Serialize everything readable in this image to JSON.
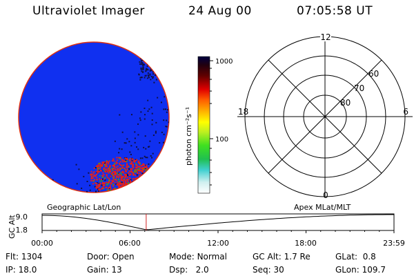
{
  "header": {
    "instrument": "Ultraviolet Imager",
    "date": "24 Aug 00",
    "time": "07:05:58 UT"
  },
  "colorbar": {
    "unit_label": "photon cm⁻²s⁻¹",
    "ticks": [
      "1000",
      "100"
    ]
  },
  "polar_plot": {
    "mlt_labels": [
      "12",
      "18",
      "6",
      "0"
    ],
    "lat_labels": [
      "60",
      "70",
      "80"
    ]
  },
  "timeline": {
    "axis_label": "GC Alt",
    "left_caption": "Geographic Lat/Lon",
    "right_caption": "Apex MLat/MLT",
    "y_ticks": [
      "9.0",
      "1.8"
    ],
    "x_ticks": [
      "00:00",
      "06:00",
      "12:00",
      "18:00",
      "23:59"
    ],
    "current_time_hours": 7.1
  },
  "status": {
    "row1": [
      {
        "label": "Flt:",
        "value": "1304"
      },
      {
        "label": "Door:",
        "value": "Open"
      },
      {
        "label": "Mode:",
        "value": "Normal"
      },
      {
        "label": "GC Alt:",
        "value": "1.7 Re"
      },
      {
        "label": "GLat:",
        "value": "0.8"
      }
    ],
    "row2": [
      {
        "label": "IP:",
        "value": "18.0"
      },
      {
        "label": "Gain:",
        "value": "13"
      },
      {
        "label": "Dsp:",
        "value": "2.0"
      },
      {
        "label": "Seq:",
        "value": "30"
      },
      {
        "label": "GLon:",
        "value": "109.7"
      }
    ]
  },
  "colors": {
    "disk_fill": "#1030f0",
    "disk_rim": "#e03010",
    "emission_dark": "#101040",
    "emission_bright": "#f02010",
    "time_marker": "#d02020"
  }
}
